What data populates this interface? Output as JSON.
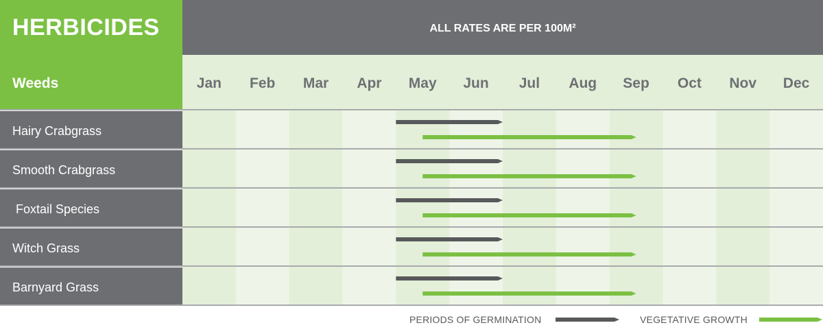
{
  "header": {
    "title": "HERBICIDES",
    "rates_note": "ALL RATES ARE PER 100M²",
    "weeds_label": "Weeds"
  },
  "colors": {
    "brand_green": "#7bc043",
    "header_gray": "#6c6e72",
    "germination_bar": "#58595b",
    "growth_bar": "#7bc043",
    "column_light": "#eef5e8",
    "column_dark": "#e3efd8",
    "grid_line": "#a8aaac"
  },
  "chart_data": {
    "type": "gantt",
    "title": "HERBICIDES",
    "subtitle": "ALL RATES ARE PER 100M²",
    "row_header": "Weeds",
    "months": [
      "Jan",
      "Feb",
      "Mar",
      "Apr",
      "May",
      "Jun",
      "Jul",
      "Aug",
      "Sep",
      "Oct",
      "Nov",
      "Dec"
    ],
    "series": [
      {
        "name": "PERIODS OF GERMINATION",
        "color": "#58595b"
      },
      {
        "name": "VEGETATIVE GROWTH",
        "color": "#7bc043"
      }
    ],
    "rows": [
      {
        "weed": "Hairy Crabgrass",
        "germination": [
          5.0,
          7.0
        ],
        "vegetative_growth": [
          5.5,
          9.5
        ]
      },
      {
        "weed": "Smooth Crabgrass",
        "germination": [
          5.0,
          7.0
        ],
        "vegetative_growth": [
          5.5,
          9.5
        ]
      },
      {
        "weed": " Foxtail Species",
        "germination": [
          5.0,
          7.0
        ],
        "vegetative_growth": [
          5.5,
          9.5
        ]
      },
      {
        "weed": "Witch Grass",
        "germination": [
          5.0,
          7.0
        ],
        "vegetative_growth": [
          5.5,
          9.5
        ]
      },
      {
        "weed": "Barnyard Grass",
        "germination": [
          5.0,
          7.0
        ],
        "vegetative_growth": [
          5.5,
          9.5
        ]
      }
    ]
  },
  "legend": {
    "germination_label": "PERIODS OF GERMINATION",
    "growth_label": "VEGETATIVE GROWTH"
  }
}
